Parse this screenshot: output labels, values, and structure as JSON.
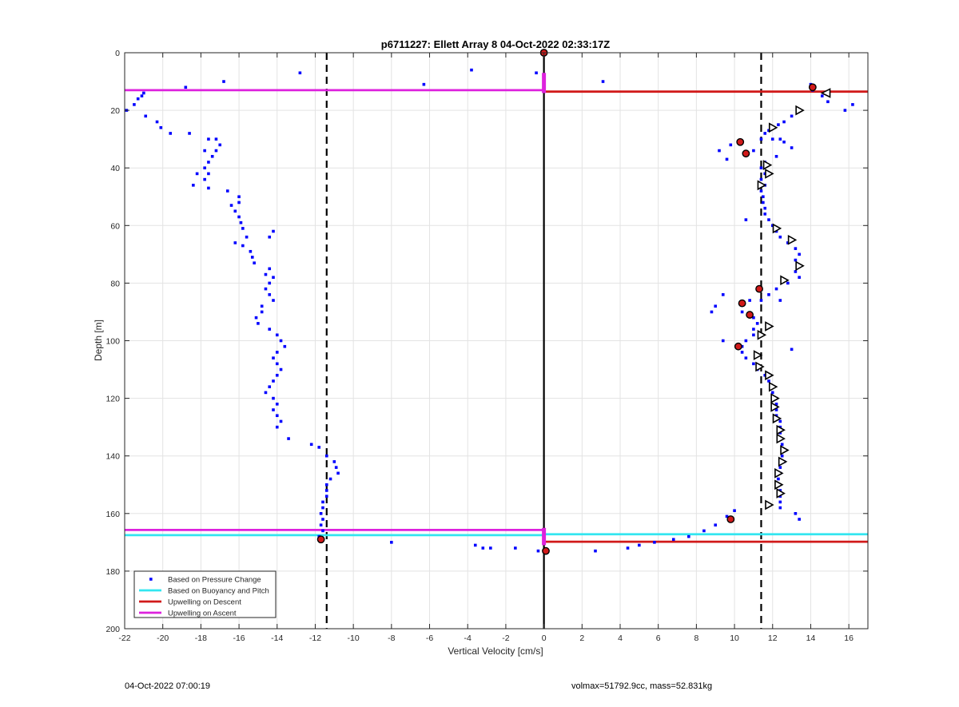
{
  "footer": {
    "left": "04-Oct-2022 07:00:19",
    "right": "volmax=51792.9cc, mass=52.831kg"
  },
  "chart_data": {
    "type": "scatter",
    "title": "p6711227: Ellett Array 8 04-Oct-2022 02:33:17Z",
    "xlabel": "Vertical Velocity [cm/s]",
    "ylabel": "Depth [m]",
    "xlim": [
      -22,
      17
    ],
    "ylim": [
      0,
      200
    ],
    "y_reversed": true,
    "grid": true,
    "legend_position": "bottom-left",
    "xticks": [
      -22,
      -20,
      -18,
      -16,
      -14,
      -12,
      -10,
      -8,
      -6,
      -4,
      -2,
      0,
      2,
      4,
      6,
      8,
      10,
      12,
      14,
      16
    ],
    "yticks": [
      0,
      20,
      40,
      60,
      80,
      100,
      120,
      140,
      160,
      180,
      200
    ],
    "colors": {
      "pressure": "#0000ff",
      "buoyancy": "#33e6f0",
      "descent": "#d11a1a",
      "ascent": "#dd22dd",
      "grid": "#e3e3e3"
    },
    "series": [
      {
        "name": "Based on Pressure Change",
        "style": "points",
        "points": [
          [
            -21.0,
            14
          ],
          [
            -21.1,
            15
          ],
          [
            -21.3,
            16
          ],
          [
            -21.5,
            18
          ],
          [
            -21.9,
            20
          ],
          [
            -20.9,
            22
          ],
          [
            -20.3,
            24
          ],
          [
            -20.1,
            26
          ],
          [
            -19.6,
            28
          ],
          [
            -18.6,
            28
          ],
          [
            -17.6,
            30
          ],
          [
            -17.2,
            30
          ],
          [
            -17.0,
            32
          ],
          [
            -17.8,
            34
          ],
          [
            -17.2,
            34
          ],
          [
            -17.4,
            36
          ],
          [
            -17.6,
            38
          ],
          [
            -17.8,
            40
          ],
          [
            -17.6,
            42
          ],
          [
            -18.2,
            42
          ],
          [
            -17.8,
            44
          ],
          [
            -18.4,
            46
          ],
          [
            -17.6,
            47
          ],
          [
            -16.6,
            48
          ],
          [
            -16.0,
            50
          ],
          [
            -16.0,
            52
          ],
          [
            -16.4,
            53
          ],
          [
            -16.2,
            55
          ],
          [
            -16.0,
            57
          ],
          [
            -15.9,
            59
          ],
          [
            -15.8,
            61
          ],
          [
            -14.2,
            62
          ],
          [
            -14.4,
            64
          ],
          [
            -15.6,
            64
          ],
          [
            -16.2,
            66
          ],
          [
            -15.8,
            67
          ],
          [
            -15.4,
            69
          ],
          [
            -15.3,
            71
          ],
          [
            -15.2,
            73
          ],
          [
            -14.4,
            75
          ],
          [
            -14.6,
            77
          ],
          [
            -14.2,
            78
          ],
          [
            -14.4,
            80
          ],
          [
            -14.6,
            82
          ],
          [
            -14.4,
            84
          ],
          [
            -14.2,
            86
          ],
          [
            -14.8,
            88
          ],
          [
            -14.8,
            90
          ],
          [
            -15.1,
            92
          ],
          [
            -15.0,
            94
          ],
          [
            -14.4,
            96
          ],
          [
            -14.0,
            98
          ],
          [
            -13.8,
            100
          ],
          [
            -13.6,
            102
          ],
          [
            -14.0,
            104
          ],
          [
            -14.2,
            106
          ],
          [
            -14.0,
            108
          ],
          [
            -13.8,
            110
          ],
          [
            -14.0,
            112
          ],
          [
            -14.2,
            114
          ],
          [
            -14.4,
            116
          ],
          [
            -14.6,
            118
          ],
          [
            -14.2,
            120
          ],
          [
            -14.0,
            122
          ],
          [
            -14.2,
            124
          ],
          [
            -14.0,
            126
          ],
          [
            -13.8,
            128
          ],
          [
            -14.0,
            130
          ],
          [
            -13.4,
            134
          ],
          [
            -12.2,
            136
          ],
          [
            -11.8,
            137
          ],
          [
            -11.4,
            140
          ],
          [
            -11.0,
            142
          ],
          [
            -10.9,
            144
          ],
          [
            -10.8,
            146
          ],
          [
            -11.2,
            148
          ],
          [
            -11.4,
            150
          ],
          [
            -11.4,
            152
          ],
          [
            -11.4,
            154
          ],
          [
            -11.6,
            156
          ],
          [
            -11.6,
            158
          ],
          [
            -11.7,
            160
          ],
          [
            -11.6,
            162
          ],
          [
            -11.7,
            164
          ],
          [
            -11.6,
            166
          ],
          [
            -11.8,
            168
          ],
          [
            -18.8,
            12
          ],
          [
            -16.8,
            10
          ],
          [
            -12.8,
            7
          ],
          [
            -6.3,
            11
          ],
          [
            -3.8,
            6
          ],
          [
            -0.4,
            7
          ],
          [
            3.1,
            10
          ],
          [
            -8.0,
            170
          ],
          [
            -3.6,
            171
          ],
          [
            -3.2,
            172
          ],
          [
            -2.8,
            172
          ],
          [
            -1.5,
            172
          ],
          [
            -0.3,
            173
          ],
          [
            2.7,
            173
          ],
          [
            4.4,
            172
          ],
          [
            5.0,
            171
          ],
          [
            5.8,
            170
          ],
          [
            6.8,
            169
          ],
          [
            7.6,
            168
          ],
          [
            8.4,
            166
          ],
          [
            9.0,
            164
          ],
          [
            14.0,
            11
          ],
          [
            14.1,
            13
          ],
          [
            14.6,
            15
          ],
          [
            14.9,
            17
          ],
          [
            16.2,
            18
          ],
          [
            15.8,
            20
          ],
          [
            13.3,
            20
          ],
          [
            13.0,
            22
          ],
          [
            12.6,
            24
          ],
          [
            12.3,
            25
          ],
          [
            12.0,
            26
          ],
          [
            11.8,
            27
          ],
          [
            11.6,
            28
          ],
          [
            12.0,
            30
          ],
          [
            12.4,
            30
          ],
          [
            11.4,
            30
          ],
          [
            10.2,
            31
          ],
          [
            9.8,
            32
          ],
          [
            12.6,
            31
          ],
          [
            13.0,
            33
          ],
          [
            11.0,
            34
          ],
          [
            10.6,
            35
          ],
          [
            12.2,
            36
          ],
          [
            11.6,
            38
          ],
          [
            11.4,
            40
          ],
          [
            11.6,
            42
          ],
          [
            11.4,
            44
          ],
          [
            11.6,
            46
          ],
          [
            11.4,
            48
          ],
          [
            11.5,
            50
          ],
          [
            11.5,
            52
          ],
          [
            11.6,
            54
          ],
          [
            11.6,
            56
          ],
          [
            10.6,
            58
          ],
          [
            11.8,
            58
          ],
          [
            12.0,
            60
          ],
          [
            12.2,
            62
          ],
          [
            12.4,
            64
          ],
          [
            12.8,
            66
          ],
          [
            13.2,
            68
          ],
          [
            13.4,
            70
          ],
          [
            13.2,
            72
          ],
          [
            13.3,
            74
          ],
          [
            13.2,
            76
          ],
          [
            13.4,
            78
          ],
          [
            12.8,
            80
          ],
          [
            12.2,
            82
          ],
          [
            11.8,
            84
          ],
          [
            11.4,
            86
          ],
          [
            10.8,
            86
          ],
          [
            9.4,
            84
          ],
          [
            12.4,
            86
          ],
          [
            9.0,
            88
          ],
          [
            8.8,
            90
          ],
          [
            10.4,
            90
          ],
          [
            11.0,
            92
          ],
          [
            11.2,
            94
          ],
          [
            11.0,
            96
          ],
          [
            11.0,
            98
          ],
          [
            10.6,
            100
          ],
          [
            10.4,
            102
          ],
          [
            10.4,
            104
          ],
          [
            10.6,
            106
          ],
          [
            11.0,
            108
          ],
          [
            11.2,
            110
          ],
          [
            11.6,
            112
          ],
          [
            11.8,
            114
          ],
          [
            12.0,
            116
          ],
          [
            12.0,
            118
          ],
          [
            12.2,
            120
          ],
          [
            12.2,
            122
          ],
          [
            12.2,
            124
          ],
          [
            12.2,
            126
          ],
          [
            12.4,
            128
          ],
          [
            12.4,
            130
          ],
          [
            12.4,
            132
          ],
          [
            12.4,
            134
          ],
          [
            12.5,
            136
          ],
          [
            12.6,
            138
          ],
          [
            12.5,
            140
          ],
          [
            12.6,
            142
          ],
          [
            12.4,
            144
          ],
          [
            12.4,
            146
          ],
          [
            12.3,
            148
          ],
          [
            12.3,
            150
          ],
          [
            12.4,
            152
          ],
          [
            12.4,
            154
          ],
          [
            12.4,
            156
          ],
          [
            11.8,
            157
          ],
          [
            12.4,
            158
          ],
          [
            10.0,
            159
          ],
          [
            9.6,
            161
          ],
          [
            13.4,
            162
          ],
          [
            13.2,
            160
          ],
          [
            9.4,
            100
          ],
          [
            13.0,
            103
          ],
          [
            9.2,
            34
          ],
          [
            9.6,
            37
          ]
        ]
      },
      {
        "name": "Based on Buoyancy and Pitch",
        "style": "line"
      },
      {
        "name": "Upwelling on Descent",
        "style": "line"
      },
      {
        "name": "Upwelling on Ascent",
        "style": "line"
      },
      {
        "style": "open-triangle",
        "points": [
          [
            14.8,
            14
          ],
          [
            13.4,
            20
          ],
          [
            12.0,
            26
          ],
          [
            11.7,
            39
          ],
          [
            11.8,
            42
          ],
          [
            11.4,
            46
          ],
          [
            12.2,
            61
          ],
          [
            13.0,
            65
          ],
          [
            13.4,
            74
          ],
          [
            12.6,
            79
          ],
          [
            11.8,
            95
          ],
          [
            11.4,
            98
          ],
          [
            11.2,
            105
          ],
          [
            11.3,
            109
          ],
          [
            11.8,
            112
          ],
          [
            12.0,
            116
          ],
          [
            12.1,
            120
          ],
          [
            12.1,
            123
          ],
          [
            12.2,
            127
          ],
          [
            12.4,
            131
          ],
          [
            12.4,
            134
          ],
          [
            12.6,
            138
          ],
          [
            12.5,
            142
          ],
          [
            12.3,
            146
          ],
          [
            12.3,
            150
          ],
          [
            12.4,
            153
          ],
          [
            11.8,
            157
          ]
        ]
      },
      {
        "style": "filled-marker",
        "points": [
          [
            0,
            0
          ],
          [
            14.1,
            12
          ],
          [
            10.3,
            31
          ],
          [
            10.6,
            35
          ],
          [
            11.3,
            82
          ],
          [
            10.4,
            87
          ],
          [
            10.8,
            91
          ],
          [
            10.2,
            102
          ],
          [
            9.8,
            162
          ],
          [
            -11.7,
            169
          ],
          [
            0.1,
            173
          ]
        ]
      }
    ],
    "reference_lines": {
      "vertical_dashed_x": [
        -11.4,
        11.4
      ],
      "vertical_solid_x": [
        0
      ]
    },
    "upwelling_lines": [
      {
        "series": "Upwelling on Ascent",
        "depth": 13,
        "x": [
          -22,
          0
        ]
      },
      {
        "series": "Upwelling on Descent",
        "depth": 13.5,
        "x": [
          0,
          17
        ]
      },
      {
        "series": "Based on Buoyancy and Pitch",
        "depth": 167.5,
        "x": [
          -22,
          0
        ]
      },
      {
        "series": "Upwelling on Ascent",
        "depth": 165.7,
        "x": [
          -22,
          0
        ]
      },
      {
        "series": "Based on Buoyancy and Pitch",
        "depth": 167.2,
        "x": [
          0,
          17
        ]
      },
      {
        "series": "Upwelling on Descent",
        "depth": 169.8,
        "x": [
          0,
          17
        ]
      }
    ]
  }
}
